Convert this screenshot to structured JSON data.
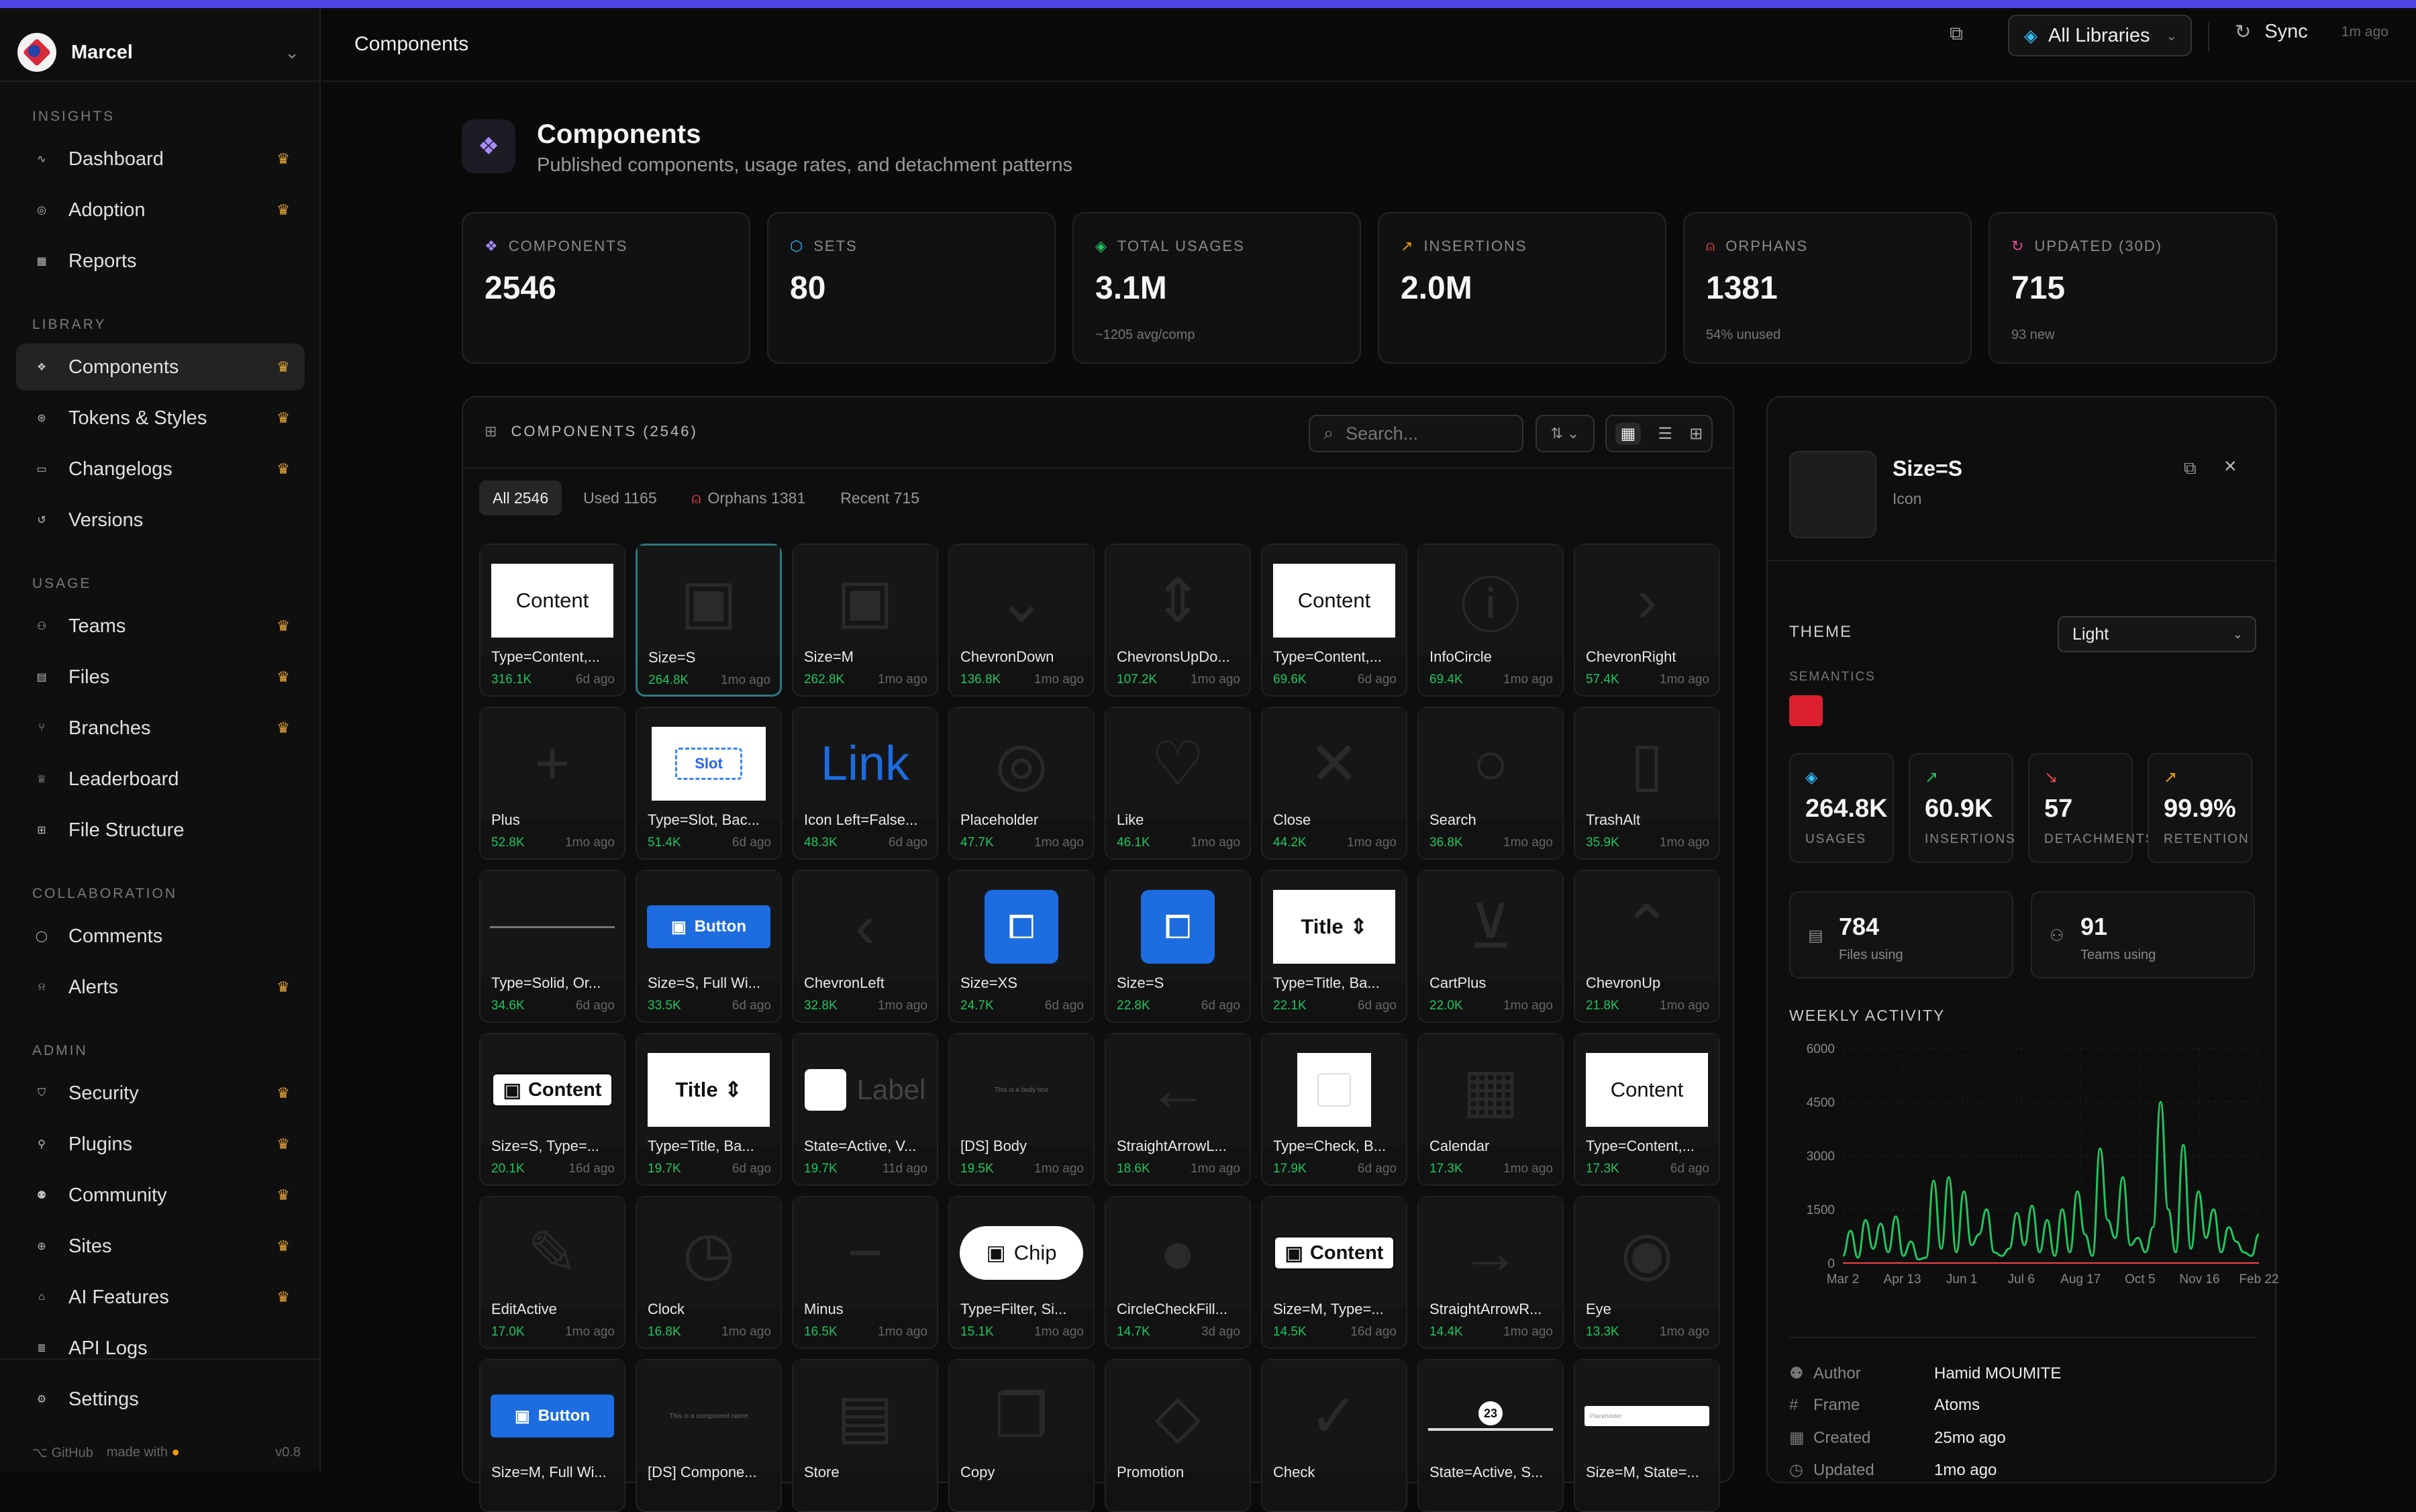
{
  "workspace": {
    "name": "Marcel"
  },
  "sidebar": {
    "sections": [
      {
        "title": "INSIGHTS",
        "items": [
          {
            "label": "Dashboard",
            "icon": "activity-icon",
            "crown": true
          },
          {
            "label": "Adoption",
            "icon": "target-icon",
            "crown": true
          },
          {
            "label": "Reports",
            "icon": "layout-icon",
            "crown": false
          }
        ]
      },
      {
        "title": "LIBRARY",
        "items": [
          {
            "label": "Components",
            "icon": "component-icon",
            "crown": true,
            "active": true
          },
          {
            "label": "Tokens & Styles",
            "icon": "token-icon",
            "crown": true
          },
          {
            "label": "Changelogs",
            "icon": "book-icon",
            "crown": true
          },
          {
            "label": "Versions",
            "icon": "history-icon",
            "crown": false
          }
        ]
      },
      {
        "title": "USAGE",
        "items": [
          {
            "label": "Teams",
            "icon": "users-icon",
            "crown": true
          },
          {
            "label": "Files",
            "icon": "file-icon",
            "crown": true
          },
          {
            "label": "Branches",
            "icon": "branch-icon",
            "crown": true
          },
          {
            "label": "Leaderboard",
            "icon": "trophy-icon",
            "crown": false
          },
          {
            "label": "File Structure",
            "icon": "tree-icon",
            "crown": false
          }
        ]
      },
      {
        "title": "COLLABORATION",
        "items": [
          {
            "label": "Comments",
            "icon": "comment-icon",
            "crown": false
          },
          {
            "label": "Alerts",
            "icon": "bell-icon",
            "crown": true
          }
        ]
      },
      {
        "title": "ADMIN",
        "items": [
          {
            "label": "Security",
            "icon": "shield-icon",
            "crown": true
          },
          {
            "label": "Plugins",
            "icon": "plug-icon",
            "crown": true
          },
          {
            "label": "Community",
            "icon": "user-icon",
            "crown": true
          },
          {
            "label": "Sites",
            "icon": "globe-icon",
            "crown": true
          },
          {
            "label": "AI Features",
            "icon": "bot-icon",
            "crown": true
          },
          {
            "label": "API Logs",
            "icon": "log-icon",
            "crown": false
          }
        ]
      }
    ],
    "settings": "Settings",
    "footer": {
      "github": "GitHub",
      "made_with": "made with",
      "version": "v0.8"
    }
  },
  "header": {
    "title": "Components",
    "library_select": "All Libraries",
    "sync": "Sync",
    "sync_ago": "1m ago"
  },
  "page": {
    "title": "Components",
    "subtitle": "Published components, usage rates, and detachment patterns"
  },
  "stats": [
    {
      "label": "COMPONENTS",
      "value": "2546",
      "sub": "",
      "icon": "component-icon",
      "color": "#a78bfa"
    },
    {
      "label": "SETS",
      "value": "80",
      "sub": "",
      "icon": "box-icon",
      "color": "#38bdf8"
    },
    {
      "label": "TOTAL USAGES",
      "value": "3.1M",
      "sub": "~1205 avg/comp",
      "icon": "layers-icon",
      "color": "#22c55e"
    },
    {
      "label": "INSERTIONS",
      "value": "2.0M",
      "sub": "",
      "icon": "trend-up-icon",
      "color": "#f59e0b"
    },
    {
      "label": "ORPHANS",
      "value": "1381",
      "sub": "54% unused",
      "icon": "ghost-icon",
      "color": "#ef4444"
    },
    {
      "label": "UPDATED (30D)",
      "value": "715",
      "sub": "93 new",
      "icon": "refresh-icon",
      "color": "#ec4899"
    }
  ],
  "list": {
    "title": "COMPONENTS (2546)",
    "search_placeholder": "Search...",
    "filters": [
      {
        "label": "All 2546",
        "active": true
      },
      {
        "label": "Used 1165",
        "active": false
      },
      {
        "label": "Orphans 1381",
        "active": false,
        "icon": "ghost-icon"
      },
      {
        "label": "Recent 715",
        "active": false
      }
    ],
    "cards": [
      {
        "name": "Type=Content,...",
        "usage": "316.1K",
        "ago": "6d ago",
        "preview": "content-white",
        "text": "Content"
      },
      {
        "name": "Size=S",
        "usage": "264.8K",
        "ago": "1mo ago",
        "preview": "ghost",
        "glyph": "▣",
        "selected": true
      },
      {
        "name": "Size=M",
        "usage": "262.8K",
        "ago": "1mo ago",
        "preview": "ghost",
        "glyph": "▣"
      },
      {
        "name": "ChevronDown",
        "usage": "136.8K",
        "ago": "1mo ago",
        "preview": "ghost",
        "glyph": "⌄"
      },
      {
        "name": "ChevronsUpDo...",
        "usage": "107.2K",
        "ago": "1mo ago",
        "preview": "ghost",
        "glyph": "⇕"
      },
      {
        "name": "Type=Content,...",
        "usage": "69.6K",
        "ago": "6d ago",
        "preview": "content-white",
        "text": "Content"
      },
      {
        "name": "InfoCircle",
        "usage": "69.4K",
        "ago": "1mo ago",
        "preview": "ghost",
        "glyph": "ⓘ"
      },
      {
        "name": "ChevronRight",
        "usage": "57.4K",
        "ago": "1mo ago",
        "preview": "ghost",
        "glyph": "›"
      },
      {
        "name": "Plus",
        "usage": "52.8K",
        "ago": "1mo ago",
        "preview": "ghost",
        "glyph": "+"
      },
      {
        "name": "Type=Slot, Bac...",
        "usage": "51.4K",
        "ago": "6d ago",
        "preview": "slot",
        "text": "Slot"
      },
      {
        "name": "Icon Left=False...",
        "usage": "48.3K",
        "ago": "6d ago",
        "preview": "link",
        "text": "Link"
      },
      {
        "name": "Placeholder",
        "usage": "47.7K",
        "ago": "1mo ago",
        "preview": "ghost",
        "glyph": "◎"
      },
      {
        "name": "Like",
        "usage": "46.1K",
        "ago": "1mo ago",
        "preview": "ghost",
        "glyph": "♡"
      },
      {
        "name": "Close",
        "usage": "44.2K",
        "ago": "1mo ago",
        "preview": "ghost",
        "glyph": "✕"
      },
      {
        "name": "Search",
        "usage": "36.8K",
        "ago": "1mo ago",
        "preview": "ghost",
        "glyph": "○"
      },
      {
        "name": "TrashAlt",
        "usage": "35.9K",
        "ago": "1mo ago",
        "preview": "ghost",
        "glyph": "▯"
      },
      {
        "name": "Type=Solid, Or...",
        "usage": "34.6K",
        "ago": "6d ago",
        "preview": "line"
      },
      {
        "name": "Size=S, Full Wi...",
        "usage": "33.5K",
        "ago": "6d ago",
        "preview": "blue-button",
        "text": "Button"
      },
      {
        "name": "ChevronLeft",
        "usage": "32.8K",
        "ago": "1mo ago",
        "preview": "ghost",
        "glyph": "‹"
      },
      {
        "name": "Size=XS",
        "usage": "24.7K",
        "ago": "6d ago",
        "preview": "blue-icon"
      },
      {
        "name": "Size=S",
        "usage": "22.8K",
        "ago": "6d ago",
        "preview": "blue-icon"
      },
      {
        "name": "Type=Title, Ba...",
        "usage": "22.1K",
        "ago": "6d ago",
        "preview": "title-white",
        "text": "Title"
      },
      {
        "name": "CartPlus",
        "usage": "22.0K",
        "ago": "1mo ago",
        "preview": "ghost",
        "glyph": "⊻"
      },
      {
        "name": "ChevronUp",
        "usage": "21.8K",
        "ago": "1mo ago",
        "preview": "ghost",
        "glyph": "⌃"
      },
      {
        "name": "Size=S, Type=...",
        "usage": "20.1K",
        "ago": "16d ago",
        "preview": "content-chip",
        "text": "Content"
      },
      {
        "name": "Type=Title, Ba...",
        "usage": "19.7K",
        "ago": "6d ago",
        "preview": "title-white",
        "text": "Title"
      },
      {
        "name": "State=Active, V...",
        "usage": "19.7K",
        "ago": "11d ago",
        "preview": "label-check",
        "text": "Label"
      },
      {
        "name": "[DS] Body",
        "usage": "19.5K",
        "ago": "1mo ago",
        "preview": "tiny-text",
        "text": "This is a body text"
      },
      {
        "name": "StraightArrowL...",
        "usage": "18.6K",
        "ago": "1mo ago",
        "preview": "ghost",
        "glyph": "←"
      },
      {
        "name": "Type=Check, B...",
        "usage": "17.9K",
        "ago": "6d ago",
        "preview": "check-white"
      },
      {
        "name": "Calendar",
        "usage": "17.3K",
        "ago": "1mo ago",
        "preview": "ghost",
        "glyph": "▦"
      },
      {
        "name": "Type=Content,...",
        "usage": "17.3K",
        "ago": "6d ago",
        "preview": "content-white",
        "text": "Content"
      },
      {
        "name": "EditActive",
        "usage": "17.0K",
        "ago": "1mo ago",
        "preview": "ghost",
        "glyph": "✎"
      },
      {
        "name": "Clock",
        "usage": "16.8K",
        "ago": "1mo ago",
        "preview": "ghost",
        "glyph": "◷"
      },
      {
        "name": "Minus",
        "usage": "16.5K",
        "ago": "1mo ago",
        "preview": "ghost",
        "glyph": "−"
      },
      {
        "name": "Type=Filter, Si...",
        "usage": "15.1K",
        "ago": "1mo ago",
        "preview": "chip-pill",
        "text": "Chip"
      },
      {
        "name": "CircleCheckFill...",
        "usage": "14.7K",
        "ago": "3d ago",
        "preview": "ghost",
        "glyph": "●"
      },
      {
        "name": "Size=M, Type=...",
        "usage": "14.5K",
        "ago": "16d ago",
        "preview": "content-chip",
        "text": "Content"
      },
      {
        "name": "StraightArrowR...",
        "usage": "14.4K",
        "ago": "1mo ago",
        "preview": "ghost",
        "glyph": "→"
      },
      {
        "name": "Eye",
        "usage": "13.3K",
        "ago": "1mo ago",
        "preview": "ghost",
        "glyph": "◉"
      },
      {
        "name": "Size=M, Full Wi...",
        "usage": "",
        "ago": "",
        "preview": "blue-button",
        "text": "Button"
      },
      {
        "name": "[DS] Compone...",
        "usage": "",
        "ago": "",
        "preview": "tiny-text",
        "text": "This is a component name"
      },
      {
        "name": "Store",
        "usage": "",
        "ago": "",
        "preview": "ghost",
        "glyph": "▤"
      },
      {
        "name": "Copy",
        "usage": "",
        "ago": "",
        "preview": "ghost",
        "glyph": "❐"
      },
      {
        "name": "Promotion",
        "usage": "",
        "ago": "",
        "preview": "ghost",
        "glyph": "◇"
      },
      {
        "name": "Check",
        "usage": "",
        "ago": "",
        "preview": "ghost",
        "glyph": "✓"
      },
      {
        "name": "State=Active, S...",
        "usage": "",
        "ago": "",
        "preview": "tab-badge",
        "text": "23"
      },
      {
        "name": "Size=M, State=...",
        "usage": "",
        "ago": "",
        "preview": "input-mini",
        "text": "Placeholder"
      }
    ]
  },
  "detail": {
    "name": "Size=S",
    "kind": "Icon",
    "theme_label": "THEME",
    "theme_value": "Light",
    "semantics_label": "SEMANTICS",
    "semantic_color": "#dc1f2e",
    "metrics": [
      {
        "value": "264.8K",
        "label": "USAGES",
        "icon": "layers-icon",
        "color": "#38bdf8"
      },
      {
        "value": "60.9K",
        "label": "INSERTIONS",
        "icon": "trend-up-icon",
        "color": "#22c55e"
      },
      {
        "value": "57",
        "label": "DETACHMENTS",
        "icon": "trend-down-icon",
        "color": "#ef4444"
      },
      {
        "value": "99.9%",
        "label": "RETENTION",
        "icon": "trend-up-icon",
        "color": "#f59e0b"
      }
    ],
    "secondary": [
      {
        "value": "784",
        "label": "Files using",
        "icon": "file-icon"
      },
      {
        "value": "91",
        "label": "Teams using",
        "icon": "users-icon"
      }
    ],
    "weekly_label": "WEEKLY ACTIVITY",
    "meta": [
      {
        "key": "Author",
        "value": "Hamid MOUMITE",
        "icon": "user-icon"
      },
      {
        "key": "Frame",
        "value": "Atoms",
        "icon": "hash-icon"
      },
      {
        "key": "Created",
        "value": "25mo ago",
        "icon": "calendar-icon"
      },
      {
        "key": "Updated",
        "value": "1mo ago",
        "icon": "clock-icon"
      }
    ]
  },
  "chart_data": {
    "type": "line",
    "title": "",
    "xlabel": "",
    "ylabel": "",
    "ylim": [
      0,
      6000
    ],
    "yticks": [
      "0",
      "1500",
      "3000",
      "4500",
      "6000"
    ],
    "xticks": [
      "Mar 2",
      "Apr 13",
      "Jun 1",
      "Jul 6",
      "Aug 17",
      "Oct 5",
      "Nov 16",
      "Feb 22"
    ],
    "series": [
      {
        "color": "#22c55e",
        "values": [
          200,
          900,
          150,
          1200,
          400,
          1100,
          300,
          1300,
          200,
          600,
          100,
          150,
          2300,
          400,
          2400,
          300,
          2000,
          500,
          800,
          1500,
          300,
          200,
          400,
          1400,
          500,
          1600,
          300,
          1200,
          200,
          1500,
          300,
          2000,
          800,
          200,
          3200,
          1200,
          700,
          2400,
          500,
          700,
          300,
          1000,
          4500,
          1500,
          300,
          3300,
          400,
          2000,
          700,
          1500,
          300,
          1000,
          600,
          300,
          200,
          800
        ]
      },
      {
        "color": "#ef4444",
        "values": [
          0,
          0,
          0,
          0,
          0,
          0,
          0,
          0,
          0,
          0,
          0,
          0,
          0,
          0,
          0,
          0,
          0,
          0,
          0,
          0,
          0,
          0,
          0,
          0,
          0,
          0,
          0,
          0,
          0,
          0,
          0,
          0,
          0,
          0,
          0,
          0,
          0,
          0,
          0,
          0,
          0,
          0,
          0,
          0,
          0,
          0,
          0,
          0,
          0,
          0,
          0,
          0,
          0,
          0,
          0,
          0
        ]
      }
    ],
    "grid": true
  }
}
